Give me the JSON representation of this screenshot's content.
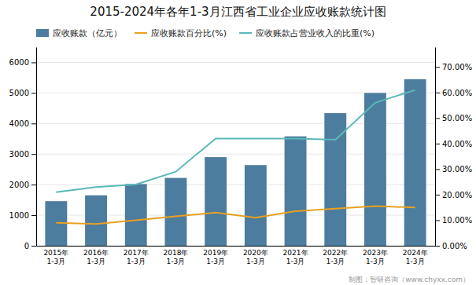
{
  "chart_data": {
    "type": "bar",
    "title": "2015-2024年各年1-3月江西省工业企业应收账款统计图",
    "categories": [
      "2015年\n1-3月",
      "2016年\n1-3月",
      "2017年\n1-3月",
      "2018年\n1-3月",
      "2019年\n1-3月",
      "2020年\n1-3月",
      "2021年\n1-3月",
      "2022年\n1-3月",
      "2023年\n1-3月",
      "2024年\n1-3月"
    ],
    "series": [
      {
        "name": "应收账款（亿元）",
        "type": "bar",
        "color": "#4d7d9e",
        "values": [
          1460,
          1650,
          2020,
          2220,
          2900,
          2640,
          3580,
          4340,
          5000,
          5450
        ]
      },
      {
        "name": "应收账款百分比(%)",
        "type": "line",
        "axis": "y2",
        "color": "#e8a020",
        "values": [
          9.0,
          8.5,
          10.0,
          11.5,
          13.0,
          11.0,
          13.5,
          14.5,
          15.5,
          15.0
        ]
      },
      {
        "name": "应收账款占营业收入的比重(%)",
        "type": "line",
        "axis": "y2",
        "color": "#5ab8b8",
        "values": [
          21.0,
          23.0,
          24.0,
          29.0,
          42.0,
          42.0,
          42.0,
          41.5,
          56.0,
          61.0
        ]
      }
    ],
    "ylim": [
      0,
      6500
    ],
    "yticks": [
      0,
      1000,
      2000,
      3000,
      4000,
      5000,
      6000
    ],
    "y2lim": [
      0.0,
      77.78
    ],
    "y2ticks": [
      {
        "value": 0.0,
        "label": "0.00%"
      },
      {
        "value": 10.0,
        "label": "10.00%"
      },
      {
        "value": 20.0,
        "label": "20.00%"
      },
      {
        "value": 30.0,
        "label": "30.00%"
      },
      {
        "value": 40.0,
        "label": "40.00%"
      },
      {
        "value": 50.0,
        "label": "50.00%"
      },
      {
        "value": 60.0,
        "label": "60.00%"
      },
      {
        "value": 70.0,
        "label": "70.00%"
      }
    ],
    "grid": true,
    "legend": "top-left",
    "annotations": [
      "制图：智研咨询（www.chyxx.com）"
    ]
  }
}
